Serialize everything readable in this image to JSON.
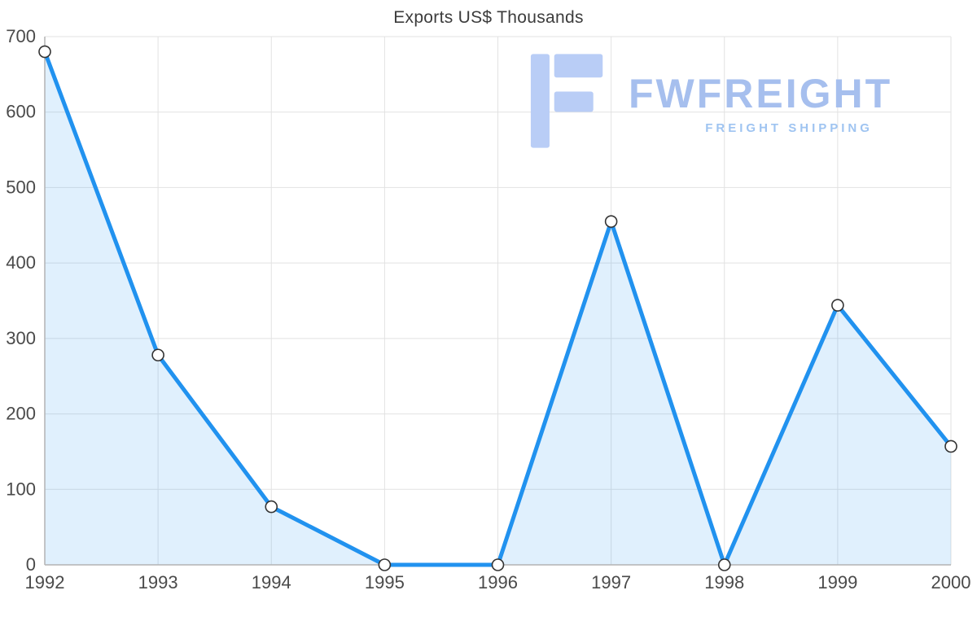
{
  "chart_data": {
    "type": "area",
    "title": "Exports US$ Thousands",
    "categories": [
      "1992",
      "1993",
      "1994",
      "1995",
      "1996",
      "1997",
      "1998",
      "1999",
      "2000"
    ],
    "values": [
      680,
      278,
      77,
      0,
      0,
      455,
      0,
      344,
      157
    ],
    "xlabel": "",
    "ylabel": "",
    "ylim": [
      0,
      700
    ],
    "yticks": [
      0,
      100,
      200,
      300,
      400,
      500,
      600,
      700
    ],
    "grid": true,
    "legend": false,
    "colors": {
      "line": "#2192ef",
      "fill": "#2196f3",
      "fill_opacity": "0.14",
      "marker_fill": "#ffffff",
      "marker_stroke": "#333333",
      "grid": "#e2e2e2",
      "axis": "#b3b3b3",
      "tick_text": "#4a4a4a",
      "title_text": "#3c3c3c"
    }
  },
  "watermark": {
    "brand": "FWFREIGHT",
    "tagline": "FREIGHT SHIPPING",
    "icon": "stylized-f-logo-icon",
    "icon_color": "#b9cdf6"
  }
}
